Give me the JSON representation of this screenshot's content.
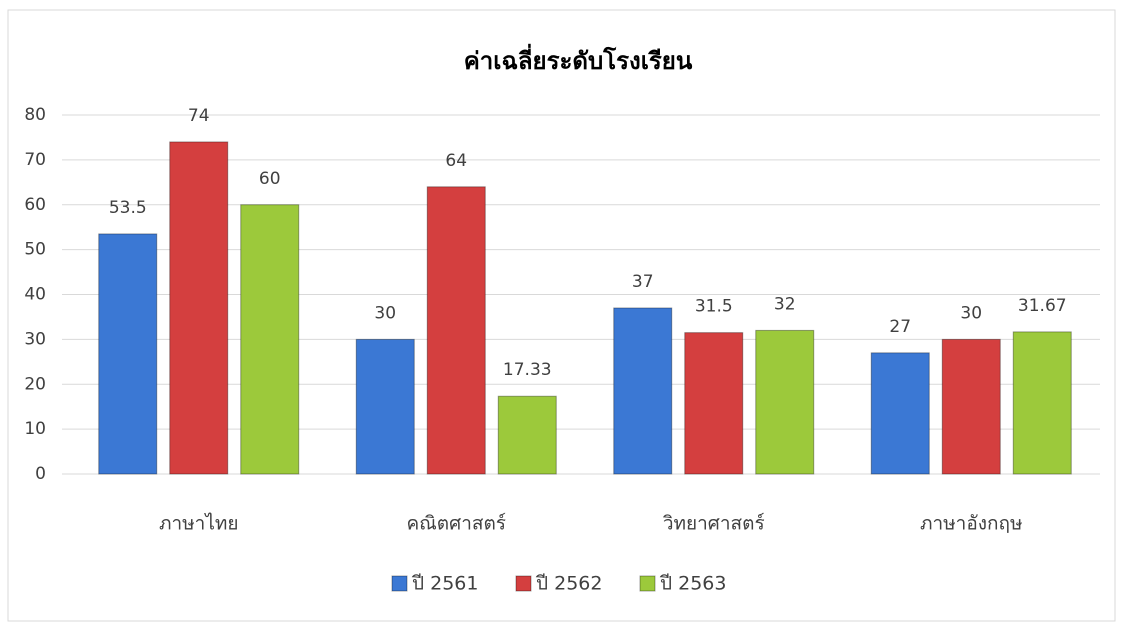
{
  "chart_data": {
    "type": "bar",
    "title": "ค่าเฉลี่ยระดับโรงเรียน",
    "categories": [
      "ภาษาไทย",
      "คณิตศาสตร์",
      "วิทยาศาสตร์",
      "ภาษาอังกฤษ"
    ],
    "series": [
      {
        "name": "ปี 2561",
        "color": "#3b78d4",
        "values": [
          53.5,
          30,
          37,
          27
        ]
      },
      {
        "name": "ปี 2562",
        "color": "#d43f3f",
        "values": [
          74,
          64,
          31.5,
          30
        ]
      },
      {
        "name": "ปี 2563",
        "color": "#9cc93b",
        "values": [
          60,
          17.33,
          32,
          31.67
        ]
      }
    ],
    "ylim": [
      0,
      80
    ],
    "yticks": [
      0,
      10,
      20,
      30,
      40,
      50,
      60,
      70,
      80
    ],
    "grid": true,
    "legend": "bottom"
  }
}
